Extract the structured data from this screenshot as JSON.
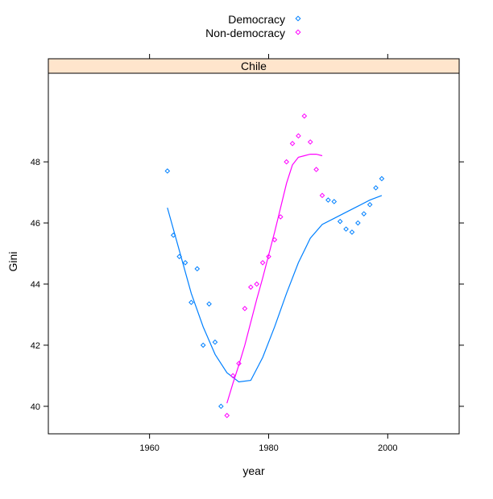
{
  "chart_data": {
    "type": "scatter",
    "panel_title": "Chile",
    "xlabel": "year",
    "ylabel": "Gini",
    "xlim": [
      1943,
      2012
    ],
    "ylim": [
      39.1,
      50.9
    ],
    "x_ticks": [
      1960,
      1980,
      2000
    ],
    "y_ticks": [
      40,
      42,
      44,
      46,
      48
    ],
    "legend_position": "top-center",
    "grid": false,
    "series": [
      {
        "name": "Democracy",
        "color": "#0080ff",
        "marker": "diamond",
        "points": [
          [
            1963,
            47.7
          ],
          [
            1964,
            45.6
          ],
          [
            1965,
            44.9
          ],
          [
            1966,
            44.7
          ],
          [
            1967,
            43.4
          ],
          [
            1968,
            44.5
          ],
          [
            1969,
            42.0
          ],
          [
            1970,
            43.35
          ],
          [
            1971,
            42.1
          ],
          [
            1972,
            40.0
          ],
          [
            1990,
            46.75
          ],
          [
            1991,
            46.7
          ],
          [
            1992,
            46.05
          ],
          [
            1993,
            45.8
          ],
          [
            1994,
            45.7
          ],
          [
            1995,
            46.0
          ],
          [
            1996,
            46.3
          ],
          [
            1997,
            46.6
          ],
          [
            1998,
            47.15
          ],
          [
            1999,
            47.45
          ]
        ],
        "smooth": [
          [
            1963,
            46.5
          ],
          [
            1965,
            45.1
          ],
          [
            1967,
            43.7
          ],
          [
            1969,
            42.6
          ],
          [
            1971,
            41.7
          ],
          [
            1973,
            41.1
          ],
          [
            1975,
            40.8
          ],
          [
            1977,
            40.85
          ],
          [
            1979,
            41.6
          ],
          [
            1981,
            42.6
          ],
          [
            1983,
            43.7
          ],
          [
            1985,
            44.7
          ],
          [
            1987,
            45.5
          ],
          [
            1989,
            45.95
          ],
          [
            1991,
            46.15
          ],
          [
            1993,
            46.35
          ],
          [
            1995,
            46.55
          ],
          [
            1997,
            46.75
          ],
          [
            1999,
            46.9
          ]
        ]
      },
      {
        "name": "Non-democracy",
        "color": "#ff00ff",
        "marker": "diamond",
        "points": [
          [
            1973,
            39.7
          ],
          [
            1974,
            41.0
          ],
          [
            1975,
            41.4
          ],
          [
            1976,
            43.2
          ],
          [
            1977,
            43.9
          ],
          [
            1978,
            44.0
          ],
          [
            1979,
            44.7
          ],
          [
            1980,
            44.9
          ],
          [
            1981,
            45.45
          ],
          [
            1982,
            46.2
          ],
          [
            1983,
            48.0
          ],
          [
            1984,
            48.6
          ],
          [
            1985,
            48.85
          ],
          [
            1986,
            49.5
          ],
          [
            1987,
            48.65
          ],
          [
            1988,
            47.75
          ],
          [
            1989,
            46.9
          ]
        ],
        "smooth": [
          [
            1973,
            40.1
          ],
          [
            1974,
            40.75
          ],
          [
            1975,
            41.35
          ],
          [
            1976,
            42.0
          ],
          [
            1977,
            42.75
          ],
          [
            1978,
            43.5
          ],
          [
            1979,
            44.2
          ],
          [
            1980,
            44.95
          ],
          [
            1981,
            45.7
          ],
          [
            1982,
            46.5
          ],
          [
            1983,
            47.3
          ],
          [
            1984,
            47.9
          ],
          [
            1985,
            48.15
          ],
          [
            1986,
            48.2
          ],
          [
            1987,
            48.25
          ],
          [
            1988,
            48.25
          ],
          [
            1989,
            48.2
          ]
        ]
      }
    ]
  }
}
